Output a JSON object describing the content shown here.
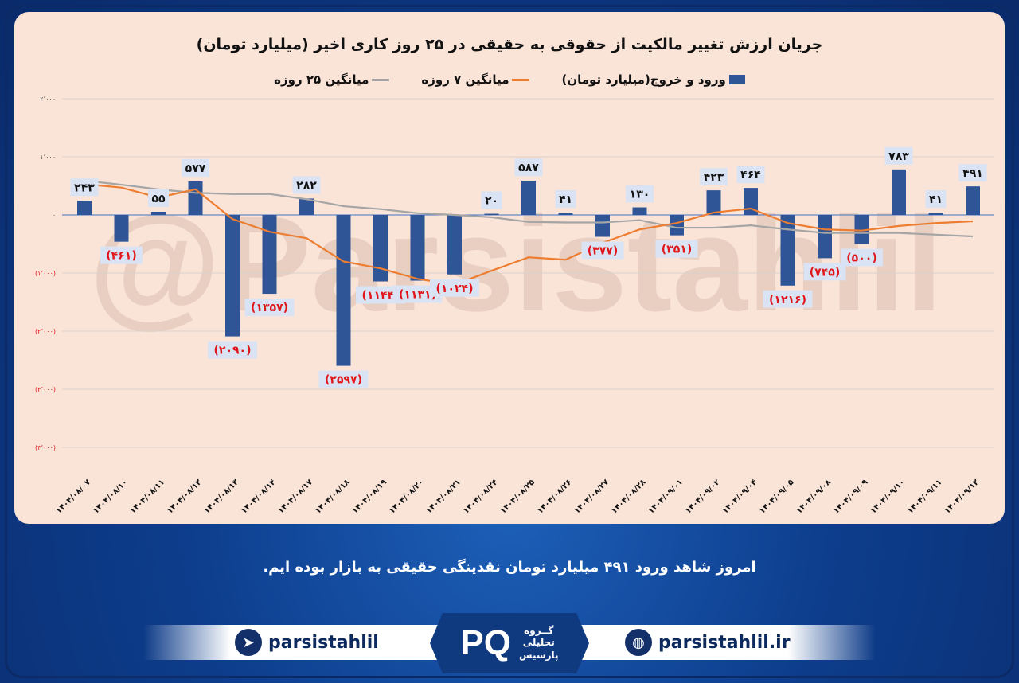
{
  "title": "جریان ارزش تغییر مالکیت از حقوقی به حقیقی در ۲۵ روز کاری اخیر (میلیارد تومان)",
  "watermark": "@Parsistahlil",
  "message": "امروز شاهد ورود ۴۹۱ میلیارد تومان نقدینگی حقیقی به بازار بوده ایم.",
  "footer": {
    "telegram": "parsistahlil",
    "website": "parsistahlil.ir",
    "logo_lines": [
      "گــروه",
      "تحلیلی",
      "پارسیس"
    ],
    "logo_mark": "PQ"
  },
  "colors": {
    "bar": "#2f5597",
    "ma7": "#ed7d31",
    "ma25": "#a5a5a5",
    "neg_label": "#e0161b",
    "label_bg": "#dae3f3"
  },
  "chart_data": {
    "type": "bar",
    "title": "جریان ارزش تغییر مالکیت از حقوقی به حقیقی در ۲۵ روز کاری اخیر (میلیارد تومان)",
    "legend": [
      {
        "name": "ورود و خروج(میلیارد تومان)",
        "kind": "bar"
      },
      {
        "name": "میانگین ۷ روزه",
        "kind": "line"
      },
      {
        "name": "میانگین ۲۵ روزه",
        "kind": "line"
      }
    ],
    "legend_position": "top",
    "categories": [
      "۱۴۰۴/۰۸/۰۷",
      "۱۴۰۴/۰۸/۱۰",
      "۱۴۰۴/۰۸/۱۱",
      "۱۴۰۴/۰۸/۱۲",
      "۱۴۰۴/۰۸/۱۳",
      "۱۴۰۴/۰۸/۱۴",
      "۱۴۰۴/۰۸/۱۷",
      "۱۴۰۴/۰۸/۱۸",
      "۱۴۰۴/۰۸/۱۹",
      "۱۴۰۴/۰۸/۲۰",
      "۱۴۰۴/۰۸/۲۱",
      "۱۴۰۴/۰۸/۲۴",
      "۱۴۰۴/۰۸/۲۵",
      "۱۴۰۴/۰۸/۲۶",
      "۱۴۰۴/۰۸/۲۷",
      "۱۴۰۴/۰۸/۲۸",
      "۱۴۰۴/۰۹/۰۱",
      "۱۴۰۴/۰۹/۰۲",
      "۱۴۰۴/۰۹/۰۴",
      "۱۴۰۴/۰۹/۰۵",
      "۱۴۰۴/۰۹/۰۸",
      "۱۴۰۴/۰۹/۰۹",
      "۱۴۰۴/۰۹/۱۰",
      "۱۴۰۴/۰۹/۱۱",
      "۱۴۰۴/۰۹/۱۲"
    ],
    "series": [
      {
        "name": "ورود و خروج(میلیارد تومان)",
        "values": [
          243,
          -461,
          55,
          577,
          -2090,
          -1357,
          282,
          -2597,
          -1144,
          -1131,
          -1024,
          20,
          587,
          41,
          -377,
          130,
          -351,
          423,
          464,
          -1216,
          -745,
          -500,
          783,
          41,
          491
        ]
      },
      {
        "name": "میانگین ۷ روزه",
        "values": [
          530,
          470,
          300,
          440,
          -70,
          -290,
          -400,
          -800,
          -920,
          -1100,
          -1200,
          -960,
          -730,
          -770,
          -480,
          -250,
          -140,
          40,
          110,
          -140,
          -250,
          -270,
          -190,
          -140,
          -110
        ]
      },
      {
        "name": "میانگین ۲۵ روزه",
        "values": [
          590,
          520,
          440,
          380,
          360,
          360,
          270,
          150,
          100,
          30,
          0,
          -40,
          -120,
          -130,
          -130,
          -90,
          -220,
          -220,
          -180,
          -250,
          -310,
          -310,
          -310,
          -340,
          -370
        ]
      }
    ],
    "yticks": [
      2000,
      1000,
      0,
      -1000,
      -2000,
      -3000,
      -4000
    ],
    "ytick_labels": [
      "۲٬۰۰۰",
      "۱٬۰۰۰",
      "۰",
      "(۱٬۰۰۰)",
      "(۲٬۰۰۰)",
      "(۳٬۰۰۰)",
      "(۴٬۰۰۰)"
    ],
    "ylim": [
      -4000,
      2000
    ],
    "grid": true,
    "xlabel": "",
    "ylabel": ""
  }
}
